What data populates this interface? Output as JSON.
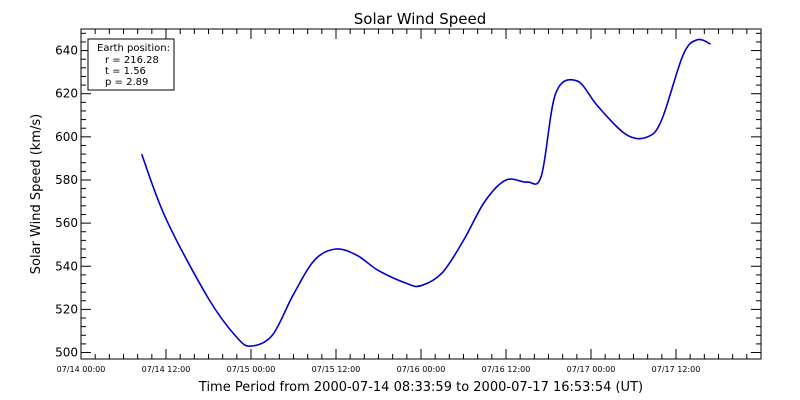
{
  "chart_data": {
    "type": "line",
    "title": "Solar Wind Speed",
    "xlabel": "Time Period from 2000-07-14 08:33:59 to 2000-07-17 16:53:54 (UT)",
    "ylabel": "Solar Wind Speed (km/s)",
    "ylim": [
      497,
      650
    ],
    "xlim": [
      "2000-07-14 00:00",
      "2000-07-18 00:00"
    ],
    "y_ticks": [
      500,
      520,
      540,
      560,
      580,
      600,
      620,
      640
    ],
    "y_tick_labels": [
      "500",
      "520",
      "540",
      "560",
      "580",
      "600",
      "620",
      "640"
    ],
    "x_ticks": [
      0,
      12,
      24,
      36,
      48,
      60,
      72,
      84,
      96
    ],
    "x_tick_labels": [
      "07/14 00:00",
      "07/14 12:00",
      "07/15 00:00",
      "07/15 12:00",
      "07/16 00:00",
      "07/16 12:00",
      "07/17 00:00",
      "07/17 12:00",
      ""
    ],
    "grid": false,
    "line_color": "#0000cc",
    "series": [
      {
        "x": [
          "2000-07-14 08:34",
          "2000-07-14 12:00",
          "2000-07-14 18:00",
          "2000-07-14 22:00",
          "2000-07-15 00:00",
          "2000-07-15 03:00",
          "2000-07-15 06:00",
          "2000-07-15 09:00",
          "2000-07-15 12:00",
          "2000-07-15 15:00",
          "2000-07-15 18:00",
          "2000-07-15 22:00",
          "2000-07-16 00:00",
          "2000-07-16 03:00",
          "2000-07-16 06:00",
          "2000-07-16 09:00",
          "2000-07-16 12:00",
          "2000-07-16 15:00",
          "2000-07-16 17:00",
          "2000-07-16 19:00",
          "2000-07-16 22:00",
          "2000-07-17 01:00",
          "2000-07-17 05:00",
          "2000-07-17 08:00",
          "2000-07-17 10:00",
          "2000-07-17 13:00",
          "2000-07-17 15:00",
          "2000-07-17 16:54"
        ],
        "y": [
          592,
          562,
          525,
          507,
          503,
          508,
          527,
          543,
          548,
          545,
          538,
          532,
          531,
          537,
          552,
          570,
          580,
          579,
          582,
          620,
          626,
          614,
          601,
          600,
          608,
          638,
          645,
          643
        ]
      }
    ],
    "annotation": {
      "heading": "Earth position:",
      "lines": [
        "r = 216.28",
        "t = 1.56",
        "p = 2.89"
      ]
    }
  }
}
